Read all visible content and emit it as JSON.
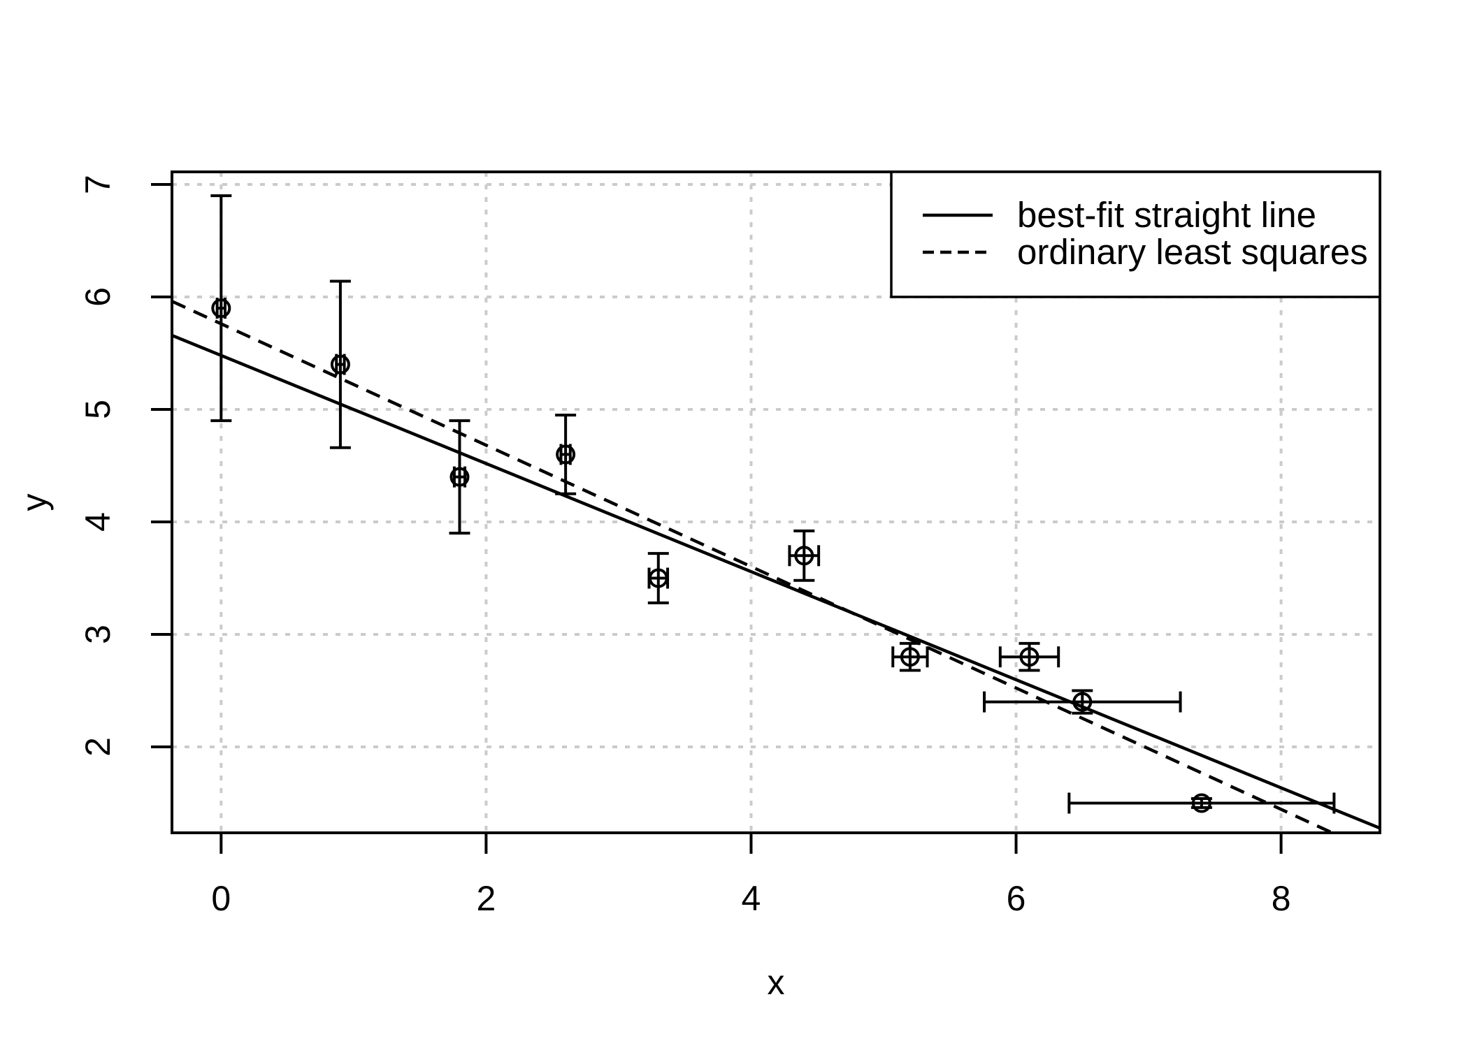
{
  "figure": {
    "background": "#ffffff",
    "axis_color": "#000000",
    "grid_color": "#cbcbcb"
  },
  "chart_data": {
    "type": "scatter",
    "title": "",
    "xlabel": "x",
    "ylabel": "y",
    "xlim": [
      -0.371,
      8.746
    ],
    "ylim": [
      1.236,
      7.112
    ],
    "xticks": [
      0,
      2,
      4,
      6,
      8
    ],
    "yticks": [
      2,
      3,
      4,
      5,
      6,
      7
    ],
    "grid": "dotted gridlines at every tick",
    "points": [
      {
        "x": 0.0,
        "y": 5.9,
        "x_err": 0.03,
        "y_err": 1.0
      },
      {
        "x": 0.9,
        "y": 5.4,
        "x_err": 0.03,
        "y_err": 0.74
      },
      {
        "x": 1.8,
        "y": 4.4,
        "x_err": 0.04,
        "y_err": 0.5
      },
      {
        "x": 2.6,
        "y": 4.6,
        "x_err": 0.035,
        "y_err": 0.35
      },
      {
        "x": 3.3,
        "y": 3.5,
        "x_err": 0.07,
        "y_err": 0.22
      },
      {
        "x": 4.4,
        "y": 3.7,
        "x_err": 0.11,
        "y_err": 0.22
      },
      {
        "x": 5.2,
        "y": 2.8,
        "x_err": 0.13,
        "y_err": 0.12
      },
      {
        "x": 6.1,
        "y": 2.8,
        "x_err": 0.22,
        "y_err": 0.12
      },
      {
        "x": 6.5,
        "y": 2.4,
        "x_err": 0.74,
        "y_err": 0.1
      },
      {
        "x": 7.4,
        "y": 1.5,
        "x_err": 1.0,
        "y_err": 0.04
      }
    ],
    "fit_lines": [
      {
        "label": "best-fit straight line",
        "linestyle": "solid",
        "slope": -0.4805,
        "intercept": 5.48
      },
      {
        "label": "ordinary least squares",
        "linestyle": "dashed",
        "slope": -0.5396,
        "intercept": 5.7612
      }
    ],
    "legend": {
      "position": "top-right"
    }
  }
}
